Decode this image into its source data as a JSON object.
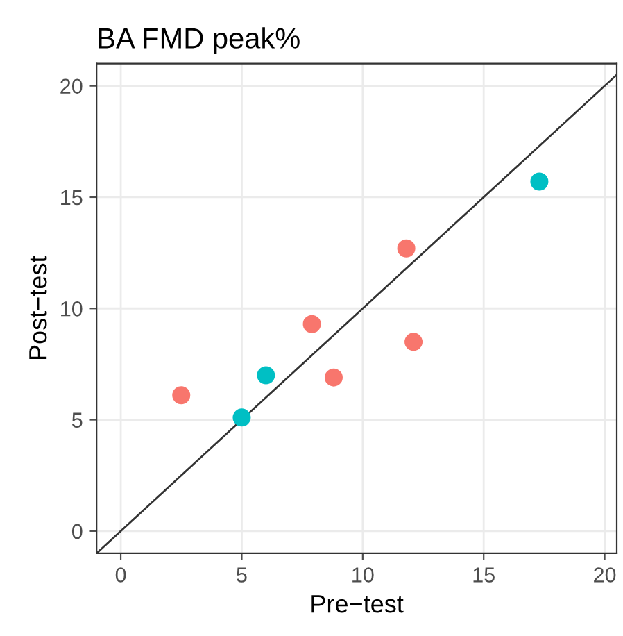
{
  "chart_data": {
    "type": "scatter",
    "title": "BA FMD peak%",
    "xlabel": "Pre−test",
    "ylabel": "Post−test",
    "xlim": [
      -1,
      20.5
    ],
    "ylim": [
      -1,
      21
    ],
    "xticks": [
      0,
      5,
      10,
      15,
      20
    ],
    "yticks": [
      0,
      5,
      10,
      15,
      20
    ],
    "grid": true,
    "legend": false,
    "marker": "circle",
    "series": [
      {
        "color": "#f8766d",
        "x": [
          2.5,
          7.9,
          8.8,
          11.8,
          12.1
        ],
        "values": [
          6.1,
          9.3,
          6.9,
          12.7,
          8.5
        ]
      },
      {
        "color": "#00bfc4",
        "x": [
          5.0,
          6.0,
          17.3
        ],
        "values": [
          5.1,
          7.0,
          15.7
        ]
      },
      {
        "type": "line",
        "marker": "none",
        "color": "#333333",
        "x": [
          -1,
          20.5
        ],
        "values": [
          -1,
          20.5
        ]
      }
    ]
  }
}
